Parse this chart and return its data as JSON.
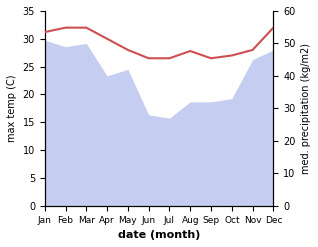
{
  "months": [
    "Jan",
    "Feb",
    "Mar",
    "Apr",
    "May",
    "Jun",
    "Jul",
    "Aug",
    "Sep",
    "Oct",
    "Nov",
    "Dec"
  ],
  "temperature": [
    31.2,
    32.0,
    32.0,
    30.0,
    28.0,
    26.5,
    26.5,
    27.8,
    26.5,
    27.0,
    28.0,
    32.0
  ],
  "precipitation": [
    51,
    49,
    50,
    40,
    42,
    28,
    27,
    32,
    32,
    33,
    45,
    48
  ],
  "temp_color": "#cd4f4f",
  "precip_fill_color": "#c5cdf0",
  "temp_ylim": [
    0,
    35
  ],
  "precip_ylim": [
    0,
    60
  ],
  "temp_ylabel": "max temp (C)",
  "precip_ylabel": "med. precipitation (kg/m2)",
  "xlabel": "date (month)",
  "temp_yticks": [
    0,
    5,
    10,
    15,
    20,
    25,
    30,
    35
  ],
  "precip_yticks": [
    0,
    10,
    20,
    30,
    40,
    50,
    60
  ]
}
